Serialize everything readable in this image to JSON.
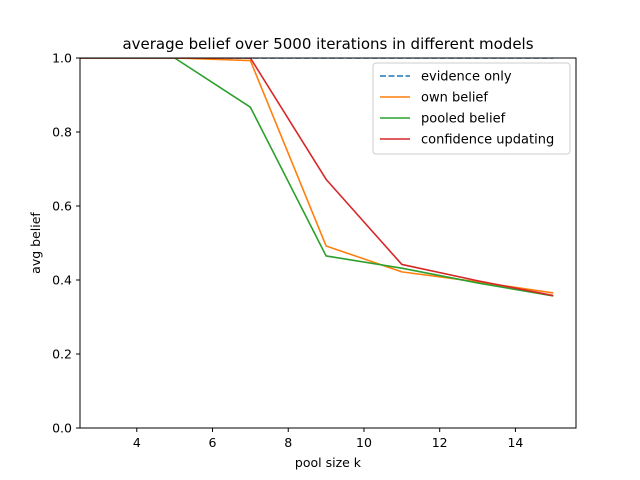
{
  "chart_data": {
    "type": "line",
    "title": "average belief over 5000 iterations in different models",
    "xlabel": "pool size k",
    "ylabel": "avg belief",
    "xlim": [
      2.5,
      15.6
    ],
    "ylim": [
      0.0,
      1.0
    ],
    "xticks": [
      4,
      6,
      8,
      10,
      12,
      14
    ],
    "yticks": [
      0.0,
      0.2,
      0.4,
      0.6,
      0.8,
      1.0
    ],
    "xtick_labels": [
      "4",
      "6",
      "8",
      "10",
      "12",
      "14"
    ],
    "ytick_labels": [
      "0.0",
      "0.2",
      "0.4",
      "0.6",
      "0.8",
      "1.0"
    ],
    "grid": false,
    "legend_position": "upper right",
    "series": [
      {
        "name": "evidence only",
        "color": "#1f77b4",
        "style": "dashed",
        "x": [
          1,
          3,
          5,
          7,
          9,
          11,
          13,
          15
        ],
        "y": [
          1.0,
          1.0,
          1.0,
          1.0,
          1.0,
          1.0,
          1.0,
          1.0
        ]
      },
      {
        "name": "own belief",
        "color": "#ff7f0e",
        "style": "solid",
        "x": [
          1,
          3,
          5,
          7,
          9,
          11,
          13,
          15
        ],
        "y": [
          1.0,
          1.0,
          1.0,
          0.993,
          0.492,
          0.422,
          0.395,
          0.365
        ]
      },
      {
        "name": "pooled belief",
        "color": "#2ca02c",
        "style": "solid",
        "x": [
          1,
          3,
          5,
          7,
          9,
          11,
          13,
          15
        ],
        "y": [
          1.0,
          1.0,
          1.0,
          0.867,
          0.465,
          0.432,
          0.392,
          0.357
        ]
      },
      {
        "name": "confidence updating",
        "color": "#d62728",
        "style": "solid",
        "x": [
          1,
          3,
          5,
          7,
          9,
          11,
          13,
          15
        ],
        "y": [
          1.0,
          1.0,
          1.0,
          1.0,
          0.672,
          0.442,
          0.398,
          0.358
        ]
      }
    ]
  }
}
